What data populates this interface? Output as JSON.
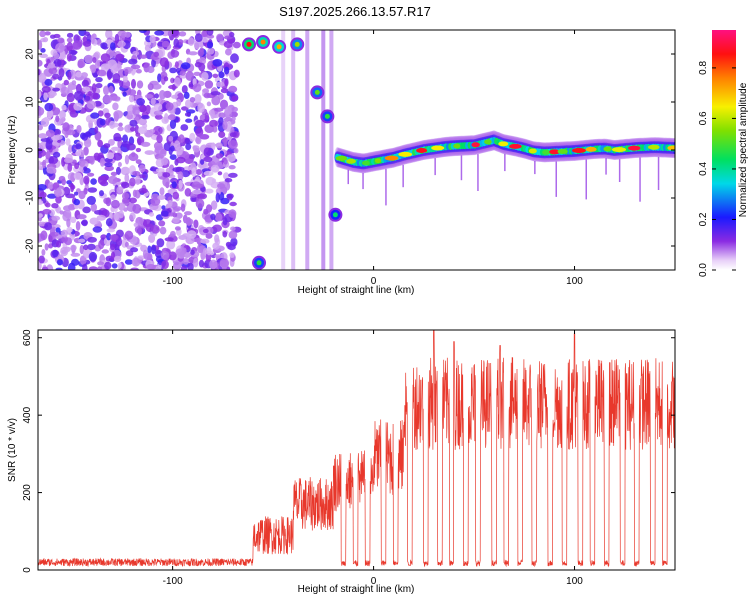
{
  "title": "S197.2025.266.13.57.R17",
  "chart_data": [
    {
      "type": "heatmap",
      "xlabel": "Height of straight line (km)",
      "ylabel": "Frequency (Hz)",
      "xlim": [
        -167,
        150
      ],
      "ylim": [
        -25,
        25
      ],
      "x_ticks": [
        -100,
        0,
        100
      ],
      "y_ticks": [
        20,
        10,
        0,
        -10,
        -20
      ],
      "noise_region": {
        "x_start": -167,
        "x_end": -68,
        "value_range": [
          0.1,
          0.3
        ]
      },
      "quiet_gap": {
        "x_start": -68,
        "x_end": -18
      },
      "track_x": [
        -18,
        -10,
        -5,
        0,
        5,
        10,
        15,
        20,
        25,
        30,
        35,
        40,
        45,
        50,
        55,
        60,
        65,
        70,
        75,
        80,
        85,
        90,
        95,
        100,
        105,
        110,
        115,
        120,
        125,
        130,
        135,
        140,
        145,
        150
      ],
      "track_freq": [
        -1.5,
        -2.5,
        -2.8,
        -2.4,
        -2.0,
        -1.6,
        -1.0,
        -0.5,
        0.0,
        0.3,
        0.6,
        0.8,
        0.9,
        1.0,
        1.5,
        2.0,
        1.2,
        0.8,
        0.3,
        -0.3,
        -0.5,
        -0.4,
        -0.3,
        -0.2,
        0.0,
        0.2,
        0.3,
        0.0,
        0.2,
        0.4,
        0.5,
        0.6,
        0.5,
        0.4
      ],
      "bright_blobs": [
        {
          "x": -62,
          "freq": 22,
          "amplitude": 0.9
        },
        {
          "x": -55,
          "freq": 22.5,
          "amplitude": 0.8
        },
        {
          "x": -47,
          "freq": 21.5,
          "amplitude": 0.75
        },
        {
          "x": -38,
          "freq": 22,
          "amplitude": 0.6
        },
        {
          "x": -28,
          "freq": 12,
          "amplitude": 0.55
        },
        {
          "x": -23,
          "freq": 7,
          "amplitude": 0.5
        },
        {
          "x": -19,
          "freq": -13.5,
          "amplitude": 0.45
        },
        {
          "x": -57,
          "freq": -23.5,
          "amplitude": 0.5
        }
      ],
      "colorbar": {
        "label": "Normalized spectral amplitude",
        "ticks": [
          0.0,
          0.2,
          0.4,
          0.6,
          0.8
        ],
        "range": [
          0.0,
          0.95
        ]
      }
    },
    {
      "type": "line",
      "xlabel": "Height of straight line (km)",
      "ylabel": "SNR (10 * v/v)",
      "xlim": [
        -167,
        150
      ],
      "ylim": [
        0,
        620
      ],
      "x_ticks": [
        -100,
        0,
        100
      ],
      "y_ticks": [
        0,
        200,
        400,
        600
      ],
      "color": "#e8382c",
      "series": [
        {
          "name": "SNR",
          "segments": [
            {
              "x_start": -167,
              "x_end": -60,
              "level": 20,
              "noise": 10
            },
            {
              "x_start": -60,
              "x_end": -40,
              "level": 90,
              "noise": 50
            },
            {
              "x_start": -40,
              "x_end": -20,
              "level": 170,
              "noise": 70
            },
            {
              "x_start": -20,
              "x_end": 0,
              "level": 230,
              "noise": 80
            },
            {
              "x_start": 0,
              "x_end": 15,
              "level": 290,
              "noise": 100
            },
            {
              "x_start": 15,
              "x_end": 150,
              "level": 430,
              "noise": 120
            }
          ],
          "dropouts_x": [
            -15,
            -9,
            -3,
            5,
            11,
            18,
            26,
            33,
            39,
            46,
            52,
            60,
            66,
            73,
            80,
            88,
            95,
            103,
            109,
            116,
            124,
            131,
            139,
            145
          ],
          "peaks": [
            {
              "x": 30,
              "value": 620
            },
            {
              "x": 100,
              "value": 610
            },
            {
              "x": 63,
              "value": 580
            },
            {
              "x": 40,
              "value": 590
            }
          ]
        }
      ]
    }
  ]
}
